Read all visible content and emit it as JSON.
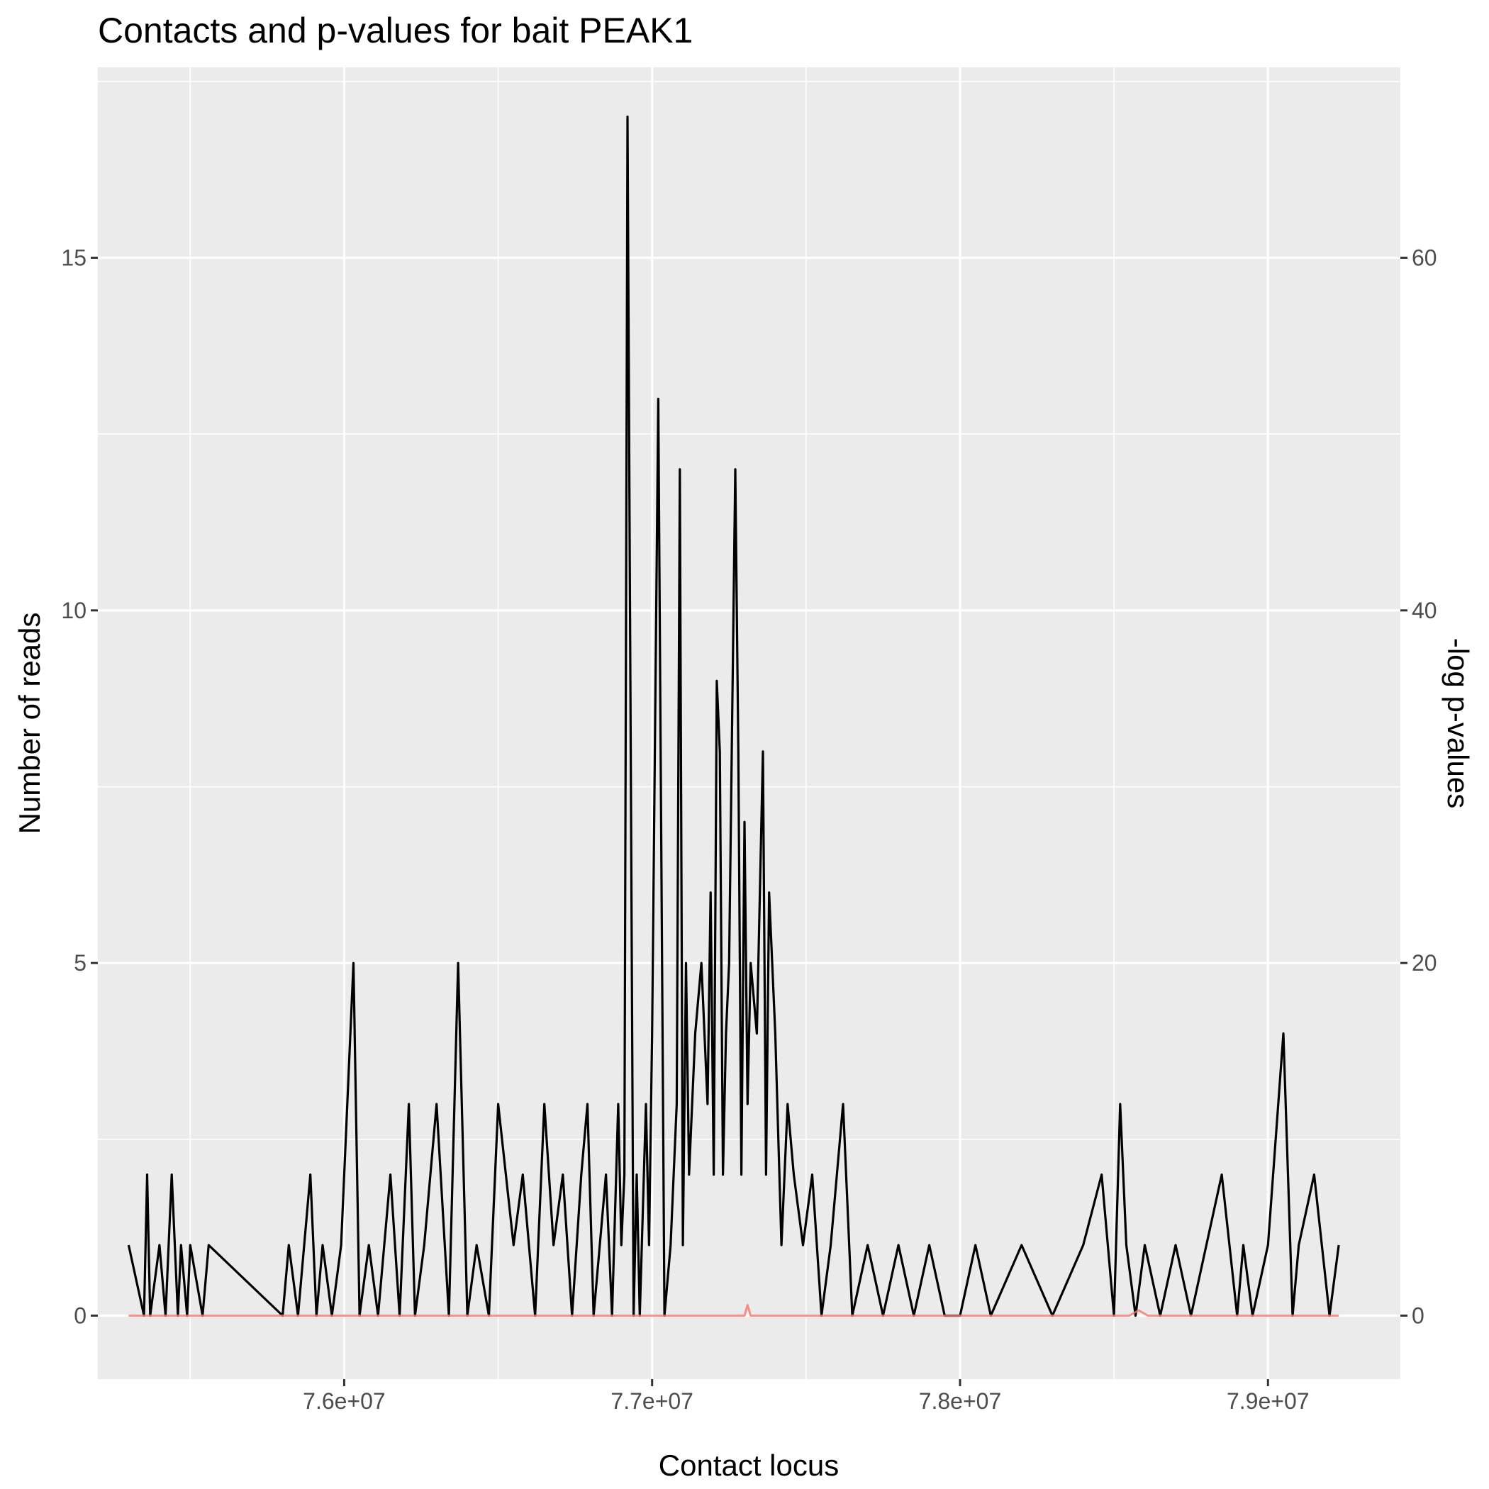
{
  "chart_data": {
    "type": "line",
    "title": "Contacts and p-values for bait PEAK1",
    "xlabel": "Contact locus",
    "ylabel": "Number of reads",
    "y2label": "-log p-values",
    "xlim": [
      75200000,
      79430000
    ],
    "ylim": [
      -0.9,
      17.7
    ],
    "y2lim": [
      -3.6,
      70.8
    ],
    "x_ticks": [
      76000000,
      77000000,
      78000000,
      79000000
    ],
    "x_tick_labels": [
      "7.6e+07",
      "7.7e+07",
      "7.8e+07",
      "7.9e+07"
    ],
    "y_ticks": [
      0,
      5,
      10,
      15
    ],
    "y_tick_labels": [
      "0",
      "5",
      "10",
      "15"
    ],
    "y2_ticks": [
      0,
      20,
      40,
      60
    ],
    "y2_tick_labels": [
      "0",
      "20",
      "40",
      "60"
    ],
    "grid": true,
    "background": "#ebebeb",
    "series": [
      {
        "axis": "left",
        "color": "#000000",
        "x": [
          75300000,
          75350000,
          75360000,
          75370000,
          75400000,
          75420000,
          75440000,
          75460000,
          75470000,
          75490000,
          75500000,
          75540000,
          75560000,
          75800000,
          75820000,
          75850000,
          75870000,
          75890000,
          75910000,
          75930000,
          75960000,
          75990000,
          76030000,
          76050000,
          76080000,
          76110000,
          76150000,
          76180000,
          76210000,
          76230000,
          76260000,
          76300000,
          76340000,
          76370000,
          76400000,
          76430000,
          76470000,
          76500000,
          76550000,
          76580000,
          76620000,
          76650000,
          76680000,
          76710000,
          76740000,
          76770000,
          76790000,
          76810000,
          76830000,
          76850000,
          76870000,
          76890000,
          76900000,
          76910000,
          76920000,
          76940000,
          76950000,
          76960000,
          76980000,
          76990000,
          77000000,
          77020000,
          77040000,
          77060000,
          77070000,
          77080000,
          77090000,
          77100000,
          77110000,
          77120000,
          77140000,
          77160000,
          77180000,
          77190000,
          77200000,
          77210000,
          77220000,
          77230000,
          77240000,
          77250000,
          77270000,
          77280000,
          77290000,
          77300000,
          77310000,
          77320000,
          77340000,
          77360000,
          77370000,
          77380000,
          77400000,
          77420000,
          77440000,
          77460000,
          77490000,
          77520000,
          77550000,
          77580000,
          77620000,
          77650000,
          77700000,
          77750000,
          77800000,
          77850000,
          77900000,
          77950000,
          78000000,
          78050000,
          78100000,
          78200000,
          78300000,
          78400000,
          78460000,
          78500000,
          78520000,
          78540000,
          78570000,
          78600000,
          78650000,
          78700000,
          78750000,
          78800000,
          78850000,
          78900000,
          78920000,
          78950000,
          79000000,
          79050000,
          79080000,
          79100000,
          79150000,
          79200000,
          79230000
        ],
        "y": [
          1,
          0,
          2,
          0,
          1,
          0,
          2,
          0,
          1,
          0,
          1,
          0,
          1,
          0,
          1,
          0,
          1,
          2,
          0,
          1,
          0,
          1,
          5,
          0,
          1,
          0,
          2,
          0,
          3,
          0,
          1,
          3,
          0,
          5,
          0,
          1,
          0,
          3,
          1,
          2,
          0,
          3,
          1,
          2,
          0,
          2,
          3,
          0,
          1,
          2,
          0,
          3,
          1,
          2,
          17,
          0,
          2,
          0,
          3,
          1,
          4,
          13,
          0,
          1,
          2,
          3,
          12,
          1,
          5,
          2,
          4,
          5,
          3,
          6,
          2,
          9,
          8,
          2,
          4,
          5,
          12,
          8,
          2,
          7,
          3,
          5,
          4,
          8,
          2,
          6,
          4,
          1,
          3,
          2,
          1,
          2,
          0,
          1,
          3,
          0,
          1,
          0,
          1,
          0,
          1,
          0,
          0,
          1,
          0,
          1,
          0,
          1,
          2,
          0,
          3,
          1,
          0,
          1,
          0,
          1,
          0,
          1,
          2,
          0,
          1,
          0,
          1,
          4,
          0,
          1,
          2,
          0,
          1
        ]
      },
      {
        "axis": "right",
        "color": "#f8766d",
        "x": [
          75300000,
          77300000,
          77310000,
          77320000,
          78550000,
          78580000,
          78610000,
          79230000
        ],
        "y": [
          0,
          0,
          0.6,
          0,
          0,
          0.3,
          0,
          0
        ]
      }
    ]
  }
}
